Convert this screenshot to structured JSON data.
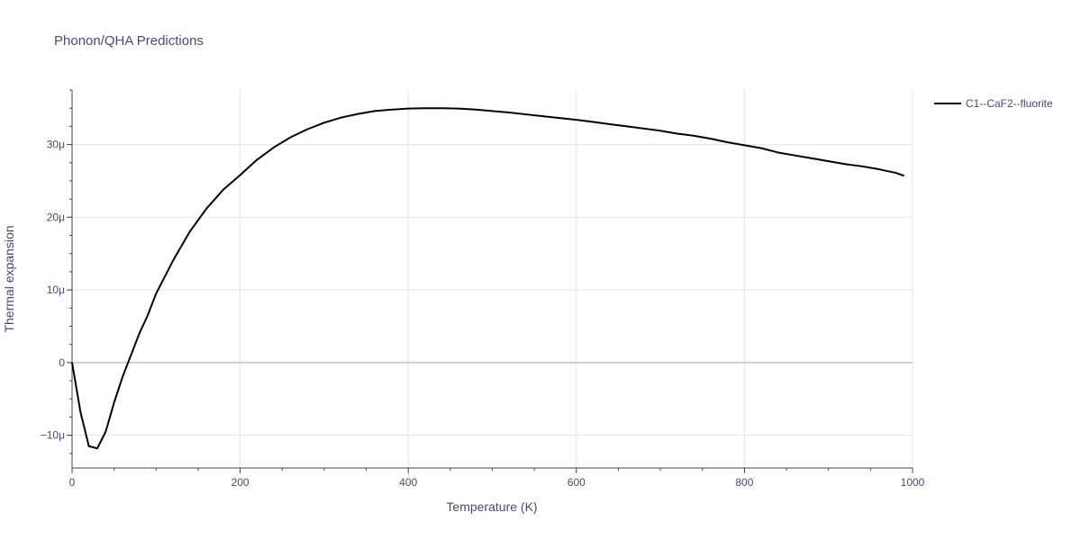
{
  "chart_data": {
    "type": "line",
    "title": "Phonon/QHA Predictions",
    "xlabel": "Temperature (K)",
    "ylabel": "Thermal expansion",
    "xlim": [
      0,
      1000
    ],
    "ylim": [
      -1.45e-05,
      3.75e-05
    ],
    "x_ticks": [
      0,
      200,
      400,
      600,
      800,
      1000
    ],
    "x_tick_labels": [
      "0",
      "200",
      "400",
      "600",
      "800",
      "1000"
    ],
    "y_ticks": [
      -1e-05,
      0,
      1e-05,
      2e-05,
      3e-05
    ],
    "y_tick_labels": [
      "−10μ",
      "0",
      "10μ",
      "20μ",
      "30μ"
    ],
    "grid": true,
    "legend_position": "top-right",
    "colors": {
      "line": "#000000",
      "grid": "#e5e5e5",
      "zeroline": "#cfcfcf",
      "text": "#444c6a"
    },
    "series": [
      {
        "name": "C1--CaF2--fluorite",
        "x": [
          0,
          10,
          20,
          30,
          40,
          50,
          60,
          70,
          80,
          90,
          100,
          120,
          140,
          160,
          180,
          200,
          220,
          240,
          260,
          280,
          300,
          320,
          340,
          360,
          380,
          400,
          420,
          440,
          460,
          480,
          500,
          520,
          540,
          560,
          580,
          600,
          620,
          640,
          660,
          680,
          700,
          720,
          740,
          760,
          780,
          800,
          820,
          840,
          860,
          880,
          900,
          920,
          940,
          960,
          980,
          990
        ],
        "y": [
          0,
          -6.8e-06,
          -1.15e-05,
          -1.18e-05,
          -9.5e-06,
          -5.5e-06,
          -2e-06,
          1e-06,
          4e-06,
          6.5e-06,
          9.5e-06,
          1.4e-05,
          1.8e-05,
          2.12e-05,
          2.38e-05,
          2.58e-05,
          2.79e-05,
          2.96e-05,
          3.1e-05,
          3.21e-05,
          3.3e-05,
          3.37e-05,
          3.42e-05,
          3.46e-05,
          3.48e-05,
          3.495e-05,
          3.5e-05,
          3.5e-05,
          3.495e-05,
          3.48e-05,
          3.46e-05,
          3.44e-05,
          3.415e-05,
          3.39e-05,
          3.365e-05,
          3.34e-05,
          3.31e-05,
          3.28e-05,
          3.25e-05,
          3.22e-05,
          3.19e-05,
          3.15e-05,
          3.12e-05,
          3.08e-05,
          3.03e-05,
          2.99e-05,
          2.95e-05,
          2.89e-05,
          2.85e-05,
          2.81e-05,
          2.77e-05,
          2.73e-05,
          2.7e-05,
          2.66e-05,
          2.61e-05,
          2.57e-05
        ]
      }
    ]
  }
}
